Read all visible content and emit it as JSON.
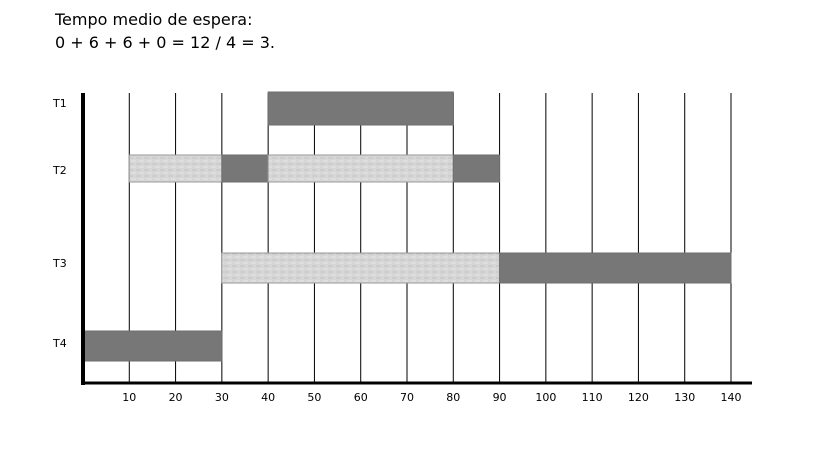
{
  "header": {
    "line1": "Tempo medio de espera:",
    "line2": "0 + 6 + 6 + 0 = 12 / 4 = 3."
  },
  "chart_data": {
    "type": "gantt",
    "title": "",
    "xlabel": "",
    "ylabel": "",
    "xlim": [
      0,
      140
    ],
    "x_ticks": [
      "10",
      "20",
      "30",
      "40",
      "50",
      "60",
      "70",
      "80",
      "90",
      "100",
      "110",
      "120",
      "130",
      "140"
    ],
    "grid": "vertical",
    "colors": {
      "executing": "#777777",
      "waiting": "#d6d6d6"
    },
    "rows": [
      {
        "label": "T1",
        "segments": [
          {
            "start": 40,
            "end": 80,
            "state": "executing"
          }
        ]
      },
      {
        "label": "T2",
        "segments": [
          {
            "start": 10,
            "end": 30,
            "state": "waiting"
          },
          {
            "start": 30,
            "end": 40,
            "state": "executing"
          },
          {
            "start": 40,
            "end": 80,
            "state": "waiting"
          },
          {
            "start": 80,
            "end": 90,
            "state": "executing"
          }
        ]
      },
      {
        "label": "T3",
        "segments": [
          {
            "start": 30,
            "end": 90,
            "state": "waiting"
          },
          {
            "start": 90,
            "end": 140,
            "state": "executing"
          }
        ]
      },
      {
        "label": "T4",
        "segments": [
          {
            "start": 0,
            "end": 30,
            "state": "executing"
          }
        ]
      }
    ]
  }
}
